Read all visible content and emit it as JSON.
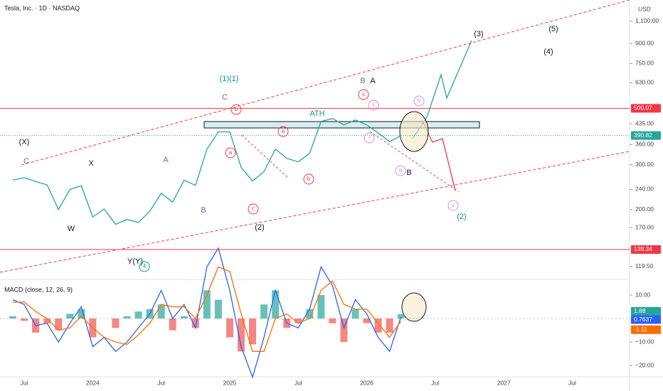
{
  "chart_data": [
    {
      "type": "line",
      "title": "Tesla, Inc. · 1D · NASDAQ",
      "currency": "USD",
      "categories": [
        null,
        "Jul",
        null,
        null,
        null,
        null,
        null,
        "2024",
        null,
        null,
        null,
        null,
        null,
        "Jul",
        null,
        null,
        null,
        null,
        null,
        "2025",
        null,
        null,
        null,
        null,
        null,
        "Jul",
        null,
        null,
        null,
        null,
        null,
        "2026",
        null,
        null,
        null,
        null,
        null,
        "Jul",
        null,
        null,
        null,
        null,
        null,
        "2027",
        null,
        null,
        null,
        null,
        null,
        "Jul",
        null
      ],
      "series": [
        {
          "color": "#26a69a",
          "values": [
            261,
            267,
            258,
            250,
            200,
            240,
            248,
            187,
            201,
            175,
            183,
            178,
            197,
            232,
            214,
            261,
            249,
            345,
            404,
            404,
            293,
            259,
            282,
            346,
            318,
            308,
            333,
            444,
            456,
            430,
            450,
            430,
            400,
            370,
            390.82,
            null,
            null,
            null,
            null,
            null,
            null,
            null,
            null,
            null,
            null,
            null,
            null,
            null,
            null,
            null,
            null
          ]
        }
      ],
      "ylim": [
        107,
        1333
      ],
      "log_scale": true,
      "yticks": [
        {
          "value": 1100,
          "label": "1,100.00"
        },
        {
          "value": 900,
          "label": "900.00"
        },
        {
          "value": 750,
          "label": "750.00"
        },
        {
          "value": 630,
          "label": "630.00"
        },
        {
          "value": 435,
          "label": "435.00"
        },
        {
          "value": 360,
          "label": "360.00"
        },
        {
          "value": 300,
          "label": "300.00"
        },
        {
          "value": 240,
          "label": "240.00"
        },
        {
          "value": 200,
          "label": "200.00"
        },
        {
          "value": 170,
          "label": "170.00"
        },
        {
          "value": 119.5,
          "label": "119.50"
        }
      ],
      "hlines": [
        {
          "value": 500.07,
          "color": "#f23645"
        },
        {
          "value": 139.34,
          "color": "#f23645"
        }
      ],
      "annotations": [
        "(X)",
        "X",
        "W",
        "Y(Y)",
        "4",
        "(1)(1)",
        "C",
        "(2)",
        "ATH",
        "B",
        "A",
        "B",
        "(2)",
        "(3)",
        "(5)",
        "(4)",
        "A",
        "B",
        "C",
        "b",
        "a",
        "c",
        "a",
        "b",
        "c",
        "ii",
        "i",
        "iii",
        "iv",
        "v"
      ]
    },
    {
      "type": "macd",
      "title": "MACD (close, 12, 26, 9)",
      "series": [
        {
          "color": "#26a69a",
          "negative_color": "#ef5350",
          "values": [
            1,
            -1,
            -6,
            -2,
            -5,
            2,
            4,
            -8,
            0,
            -4,
            1,
            3,
            4,
            6,
            -5,
            1,
            -4,
            12,
            8,
            -8,
            -14,
            -11,
            6,
            12,
            -4,
            -2,
            4,
            10,
            -2,
            -10,
            4,
            -2,
            -6,
            -6,
            1.88,
            null,
            null,
            null,
            null,
            null,
            null,
            null,
            null,
            null,
            null,
            null,
            null,
            null,
            null,
            null,
            null
          ]
        },
        {
          "color": "#2962ff",
          "values": [
            8,
            6,
            -3,
            -2,
            -10,
            -2,
            5,
            -12,
            -8,
            -14,
            -10,
            -4,
            2,
            12,
            0,
            6,
            -4,
            22,
            30,
            12,
            -12,
            -25,
            -8,
            12,
            -2,
            -4,
            4,
            22,
            14,
            -4,
            8,
            2,
            -8,
            -14,
            0.7637,
            null,
            null,
            null,
            null,
            null,
            null,
            null,
            null,
            null,
            null,
            null,
            null,
            null,
            null,
            null,
            null
          ]
        },
        {
          "color": "#ff6d00",
          "values": [
            7,
            7,
            3,
            0,
            -5,
            -4,
            1,
            -4,
            -8,
            -10,
            -11,
            -7,
            -2,
            6,
            5,
            5,
            0,
            10,
            22,
            20,
            2,
            -14,
            -14,
            0,
            2,
            -2,
            0,
            12,
            16,
            6,
            4,
            4,
            -2,
            -8,
            -1.11,
            null,
            null,
            null,
            null,
            null,
            null,
            null,
            null,
            null,
            null,
            null,
            null,
            null,
            null,
            null,
            null
          ]
        }
      ],
      "ylim": [
        -24.8,
        16.06
      ],
      "yticks": [
        {
          "value": 10,
          "label": "10.00"
        },
        {
          "value": -10,
          "label": "−10.00"
        },
        {
          "value": -20,
          "label": "−20.00"
        }
      ]
    }
  ]
}
